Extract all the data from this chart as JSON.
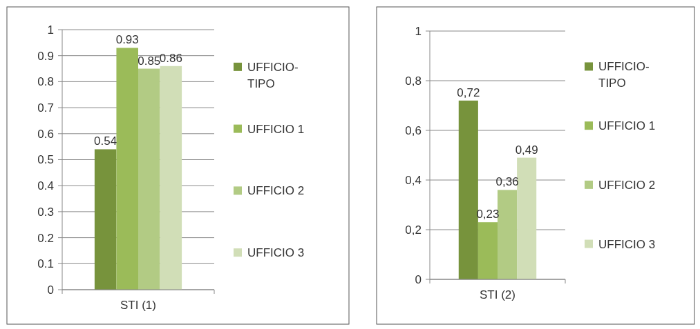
{
  "chart_data": [
    {
      "type": "bar",
      "categories": [
        "STI (1)"
      ],
      "series": [
        {
          "name": "UFFICIO-TIPO",
          "color": "#77933c",
          "values": [
            0.54
          ]
        },
        {
          "name": "UFFICIO 1",
          "color": "#9bbb59",
          "values": [
            0.93
          ]
        },
        {
          "name": "UFFICIO 2",
          "color": "#b2cb84",
          "values": [
            0.85
          ]
        },
        {
          "name": "UFFICIO 3",
          "color": "#d1deb7",
          "values": [
            0.86
          ]
        }
      ],
      "ylim": [
        0,
        1
      ],
      "yticks": [
        0,
        0.1,
        0.2,
        0.3,
        0.4,
        0.5,
        0.6,
        0.7,
        0.8,
        0.9,
        1
      ],
      "grid": "y",
      "legend": "right",
      "data_labels": true
    },
    {
      "type": "bar",
      "categories": [
        "STI (2)"
      ],
      "series": [
        {
          "name": "UFFICIO-TIPO",
          "color": "#77933c",
          "values": [
            0.72
          ],
          "value_labels": [
            "0,72"
          ]
        },
        {
          "name": "UFFICIO 1",
          "color": "#9bbb59",
          "values": [
            0.23
          ],
          "value_labels": [
            "0,23"
          ]
        },
        {
          "name": "UFFICIO 2",
          "color": "#b2cb84",
          "values": [
            0.36
          ],
          "value_labels": [
            "0,36"
          ]
        },
        {
          "name": "UFFICIO 3",
          "color": "#d1deb7",
          "values": [
            0.49
          ],
          "value_labels": [
            "0,49"
          ]
        }
      ],
      "ylim": [
        0,
        1
      ],
      "yticks": [
        0,
        {
          "value": 0.2,
          "label": "0,2"
        },
        {
          "value": 0.4,
          "label": "0,4"
        },
        {
          "value": 0.6,
          "label": "0,6"
        },
        {
          "value": 0.8,
          "label": "0,8"
        },
        1
      ],
      "grid": "y",
      "legend": "right"
    }
  ]
}
